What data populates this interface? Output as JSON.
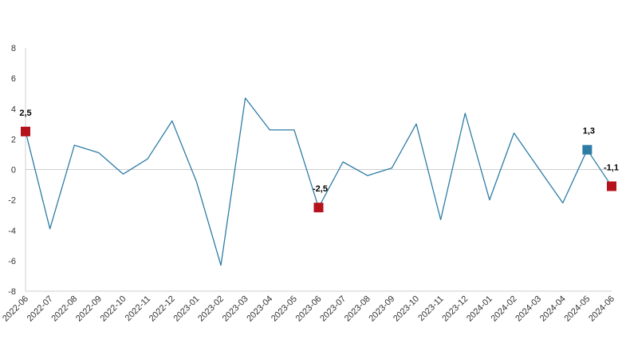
{
  "chart_data": {
    "type": "line",
    "title": "",
    "xlabel": "",
    "ylabel": "",
    "ylim": [
      -8,
      8
    ],
    "yticks": [
      8,
      6,
      4,
      2,
      0,
      -2,
      -4,
      -6,
      -8
    ],
    "grid": false,
    "legend": "none",
    "x": [
      "2022-06",
      "2022-07",
      "2022-08",
      "2022-09",
      "2022-10",
      "2022-11",
      "2022-12",
      "2023-01",
      "2023-02",
      "2023-03",
      "2023-04",
      "2023-05",
      "2023-06",
      "2023-07",
      "2023-08",
      "2023-09",
      "2023-10",
      "2023-11",
      "2023-12",
      "2024-01",
      "2024-02",
      "2024-03",
      "2024-04",
      "2024-05",
      "2024-06"
    ],
    "series": [
      {
        "values": [
          2.5,
          -3.9,
          1.6,
          1.1,
          -0.3,
          0.7,
          3.2,
          -0.8,
          -6.3,
          4.7,
          2.6,
          2.6,
          -2.5,
          0.5,
          -0.4,
          0.1,
          3.0,
          -3.3,
          3.7,
          -2.0,
          2.4,
          0.1,
          -2.2,
          1.3,
          -1.1
        ],
        "color": "#2e7ca6"
      }
    ],
    "highlights": [
      {
        "x": "2022-06",
        "value": 2.5,
        "label": "2,5",
        "color": "#b5121b"
      },
      {
        "x": "2023-06",
        "value": -2.5,
        "label": "-2,5",
        "color": "#b5121b"
      },
      {
        "x": "2024-05",
        "value": 1.3,
        "label": "1,3",
        "color": "#2e7ca6"
      },
      {
        "x": "2024-06",
        "value": -1.1,
        "label": "-1,1",
        "color": "#b5121b"
      }
    ],
    "axis_color": "#cfcfcf"
  }
}
